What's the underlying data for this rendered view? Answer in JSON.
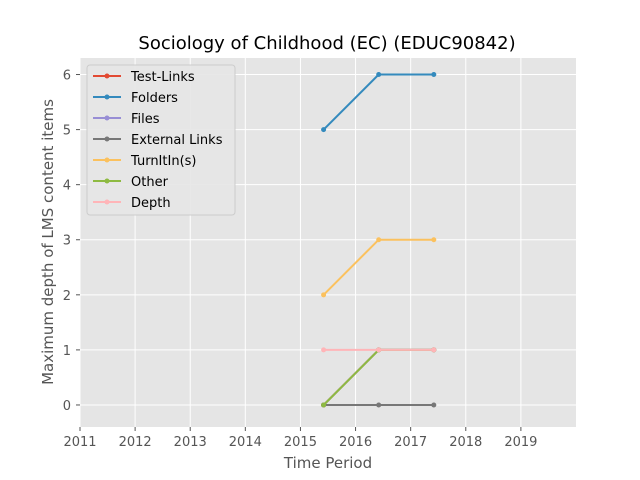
{
  "chart_data": {
    "type": "line",
    "title": "Sociology of Childhood (EC) (EDUC90842)",
    "xlabel": "Time Period",
    "ylabel": "Maximum depth of LMS content items",
    "xlim": [
      2011,
      2020
    ],
    "ylim": [
      -0.4,
      6.3
    ],
    "xticks": [
      "2011",
      "2012",
      "2013",
      "2014",
      "2015",
      "2016",
      "2017",
      "2018",
      "2019"
    ],
    "yticks": [
      "0",
      "1",
      "2",
      "3",
      "4",
      "5",
      "6"
    ],
    "grid": true,
    "legend_position": "top-left",
    "x": [
      2015.42,
      2016.42,
      2017.42
    ],
    "series": [
      {
        "name": "Test-Links",
        "color": "#E24A33",
        "values": [
          0,
          1,
          1
        ]
      },
      {
        "name": "Folders",
        "color": "#348ABD",
        "values": [
          5,
          6,
          6
        ]
      },
      {
        "name": "Files",
        "color": "#988ED5",
        "values": [
          0,
          1,
          1
        ]
      },
      {
        "name": "External Links",
        "color": "#777777",
        "values": [
          0,
          0,
          0
        ]
      },
      {
        "name": "TurnItIn(s)",
        "color": "#FBC15E",
        "values": [
          2,
          3,
          3
        ]
      },
      {
        "name": "Other",
        "color": "#8EBA42",
        "values": [
          0,
          1,
          1
        ]
      },
      {
        "name": "Depth",
        "color": "#FFB5B8",
        "values": [
          1,
          1,
          1
        ]
      }
    ]
  }
}
